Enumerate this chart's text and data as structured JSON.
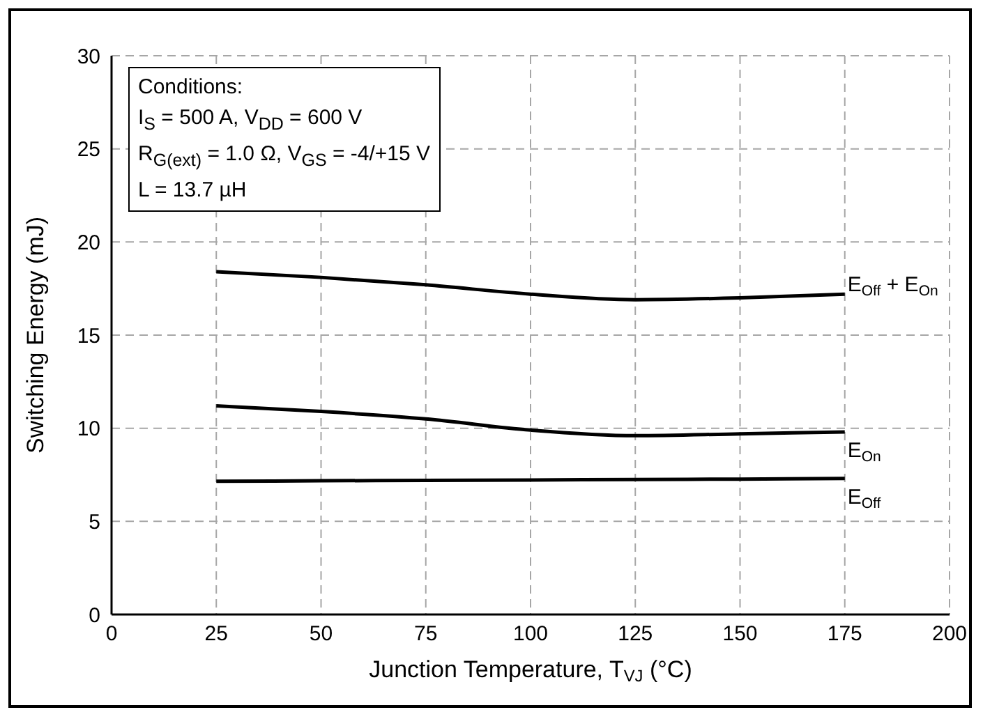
{
  "chart_data": {
    "type": "line",
    "xlabel": "Junction Temperature, T$_{VJ}$ (°C)",
    "ylabel": "Switching Energy (mJ)",
    "x": [
      25,
      50,
      75,
      100,
      125,
      150,
      175
    ],
    "series": [
      {
        "name": "E$_{Off}$ + E$_{On}$",
        "color": "#000000",
        "values": [
          18.4,
          18.1,
          17.7,
          17.2,
          16.9,
          17.0,
          17.2
        ]
      },
      {
        "name": "E$_{On}$",
        "color": "#000000",
        "values": [
          11.2,
          10.9,
          10.5,
          9.9,
          9.6,
          9.7,
          9.8
        ]
      },
      {
        "name": "E$_{Off}$",
        "color": "#000000",
        "values": [
          7.15,
          7.18,
          7.2,
          7.22,
          7.25,
          7.27,
          7.3
        ]
      }
    ],
    "xlim": [
      0,
      200
    ],
    "xticks": [
      0,
      25,
      50,
      75,
      100,
      125,
      150,
      175,
      200
    ],
    "ylim": [
      0,
      30
    ],
    "yticks": [
      0,
      5,
      10,
      15,
      20,
      25,
      30
    ],
    "grid": true,
    "marker": "none",
    "line_style": "solid",
    "annotations": [
      "Conditions:",
      "I$_{S}$ = 500 A, V$_{DD}$ = 600 V",
      "R$_{G(ext)}$ = 1.0 Ω, V$_{GS}$ = -4/+15 V",
      "L = 13.7 µH"
    ]
  }
}
